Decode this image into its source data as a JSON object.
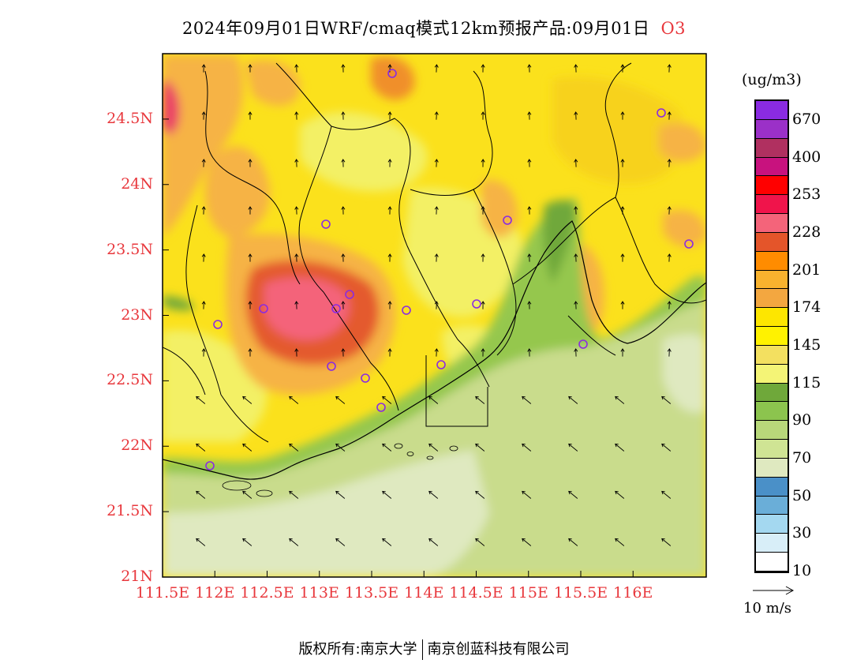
{
  "header": {
    "title": "2024年09月01日WRF/cmaq模式12km预报产品:09月01日",
    "species": "O3"
  },
  "map": {
    "lat_ticks": [
      "24.5N",
      "24N",
      "23.5N",
      "23N",
      "22.5N",
      "22N",
      "21.5N",
      "21N"
    ],
    "lon_ticks": [
      "111.5E",
      "112E",
      "112.5E",
      "113E",
      "113.5E",
      "114E",
      "114.5E",
      "115E",
      "115.5E",
      "116E"
    ],
    "lat_range": [
      21,
      25
    ],
    "lon_range": [
      111.5,
      116.7
    ],
    "fill_colors": {
      "sea": "#dfe9c0",
      "sea_shallow": "#c9dc8c",
      "coast_green": "#95c74e",
      "coast_dark": "#6fa83a",
      "yellow_light": "#f3f065",
      "yellow": "#fbe11c",
      "yellow_gold": "#f7d21a",
      "orange_light": "#f6b345",
      "orange": "#f08f2c",
      "red_orange": "#e45a2d",
      "pink": "#f4647a",
      "magenta_red": "#ea3f67"
    },
    "station_color": "#8a2be2"
  },
  "colorbar": {
    "unit": "(ug/m3)",
    "swatches": [
      "#8a2be2",
      "#9b30c8",
      "#b03060",
      "#c8127e",
      "#ff0000",
      "#f0144b",
      "#f4647a",
      "#e4552a",
      "#ff8c00",
      "#f8b22e",
      "#f3a740",
      "#fde600",
      "#fff200",
      "#f3e060",
      "#f4f476",
      "#6fa83a",
      "#8cc44e",
      "#b8d87a",
      "#cfe494",
      "#dfe9c0",
      "#4a90c8",
      "#6aaed8",
      "#a4d8f0",
      "#d8eef8",
      "#ffffff"
    ],
    "labels": [
      "670",
      "400",
      "253",
      "228",
      "201",
      "174",
      "145",
      "115",
      "90",
      "70",
      "50",
      "30",
      "10"
    ]
  },
  "wind_reference": {
    "label": "10 m/s"
  },
  "footer": {
    "copyright": "版权所有:南京大学",
    "company": "南京创蓝科技有限公司"
  }
}
